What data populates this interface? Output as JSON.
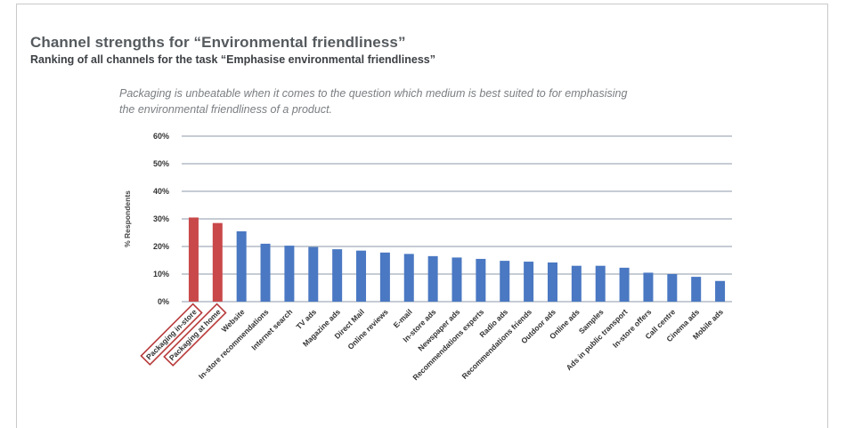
{
  "header": {
    "title": "Channel strengths for “Environmental friendliness”",
    "subtitle": "Ranking of all channels for the task “Emphasise environmental friendliness”"
  },
  "note": {
    "line1": "Packaging is unbeatable when it comes to the question which medium is best suited to for emphasising",
    "line2": "the environmental friendliness of a product."
  },
  "colors": {
    "highlight": "#c9484a",
    "bar": "#4a78c2",
    "grid": "#8c9aaa",
    "box": "#b83a3a"
  },
  "chart_data": {
    "type": "bar",
    "title": "",
    "xlabel": "",
    "ylabel": "% Respondents",
    "ylim": [
      0,
      60
    ],
    "yticks": [
      "0%",
      "10%",
      "20%",
      "30%",
      "40%",
      "50%",
      "60%"
    ],
    "grid": true,
    "highlighted": [
      "Packaging in-store",
      "Packaging at home"
    ],
    "categories": [
      "Packaging in-store",
      "Packaging at home",
      "Website",
      "In-store recommendations",
      "Internet search",
      "TV ads",
      "Magazine ads",
      "Direct Mail",
      "Online reviews",
      "E-mail",
      "In-store ads",
      "Newspaper ads",
      "Recommendations experts",
      "Radio ads",
      "Recommendations friends",
      "Outdoor ads",
      "Online ads",
      "Samples",
      "Ads in public transport",
      "In-store offers",
      "Call centre",
      "Cinema ads",
      "Mobile ads"
    ],
    "values": [
      30.5,
      28.5,
      25.5,
      21,
      20.3,
      19.8,
      19,
      18.5,
      17.8,
      17.3,
      16.5,
      16,
      15.5,
      14.8,
      14.5,
      14.2,
      13,
      13,
      12.3,
      10.5,
      10,
      9,
      7.5
    ]
  }
}
